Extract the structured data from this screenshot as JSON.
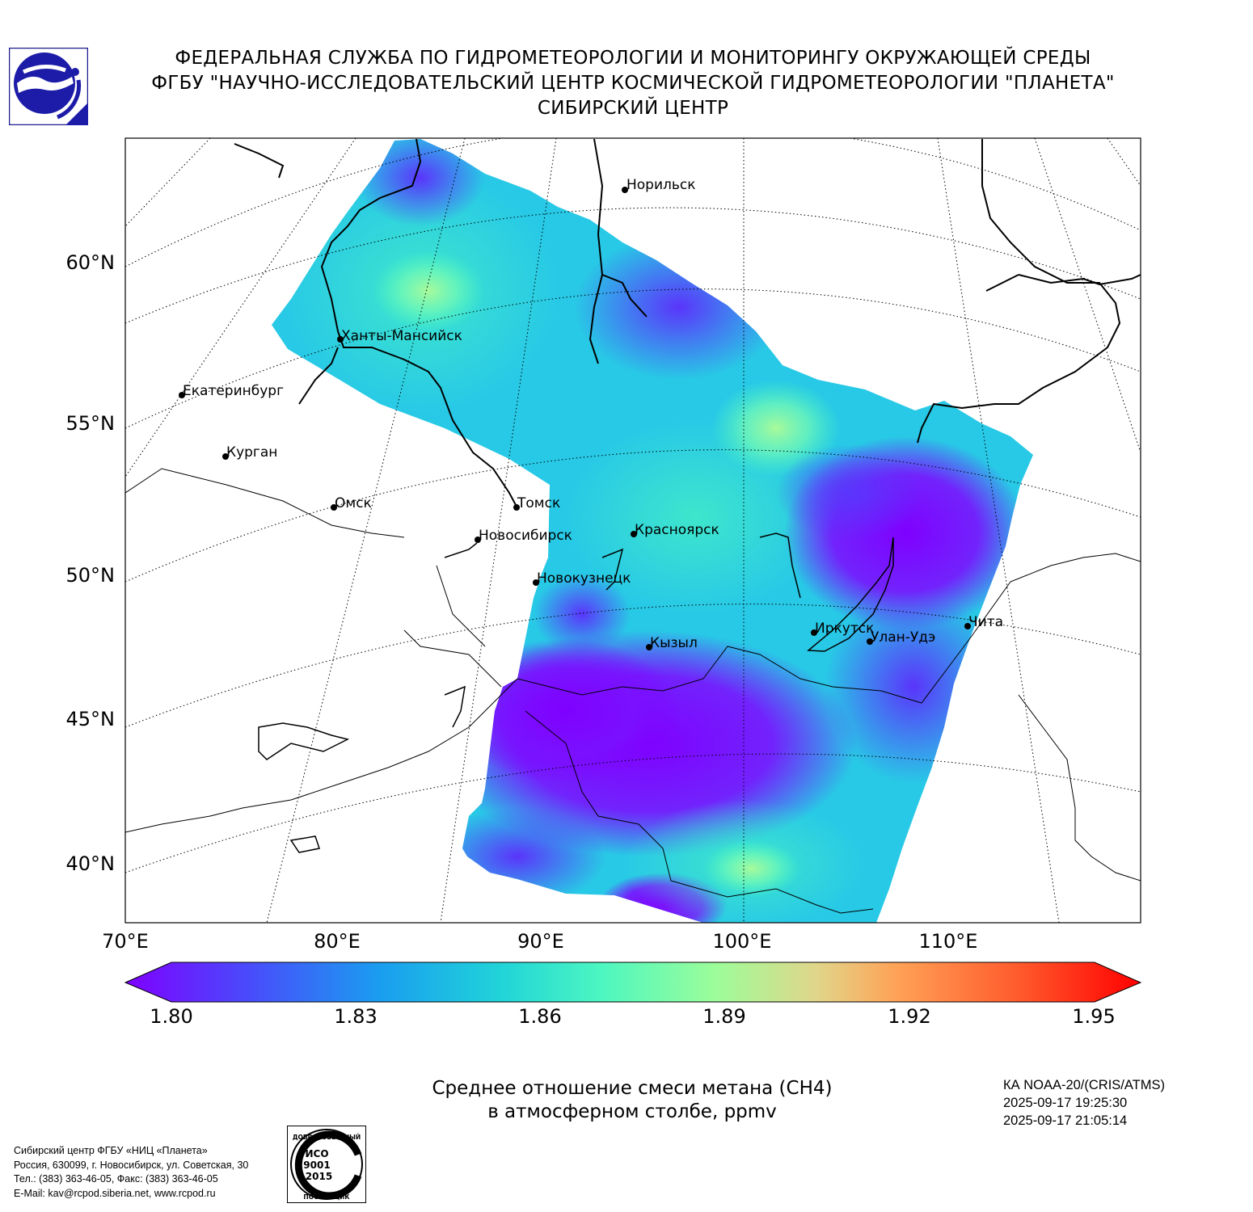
{
  "header": {
    "line1": "ФЕДЕРАЛЬНАЯ СЛУЖБА ПО ГИДРОМЕТЕОРОЛОГИИ И МОНИТОРИНГУ ОКРУЖАЮЩЕЙ СРЕДЫ",
    "line2": "ФГБУ \"НАУЧНО-ИССЛЕДОВАТЕЛЬСКИЙ ЦЕНТР КОСМИЧЕСКОЙ ГИДРОМЕТЕОРОЛОГИИ \"ПЛАНЕТА\"",
    "line3": "СИБИРСКИЙ ЦЕНТР"
  },
  "logo_icon": "planeta-logo-icon",
  "map": {
    "lat_labels": [
      "60°N",
      "55°N",
      "50°N",
      "45°N",
      "40°N"
    ],
    "lon_labels": [
      "70°E",
      "80°E",
      "90°E",
      "100°E",
      "110°E"
    ],
    "cities": [
      {
        "name": "Норильск"
      },
      {
        "name": "Ханты-Мансийск"
      },
      {
        "name": "Екатеринбург"
      },
      {
        "name": "Курган"
      },
      {
        "name": "Омск"
      },
      {
        "name": "Томск"
      },
      {
        "name": "Новосибирск"
      },
      {
        "name": "Красноярск"
      },
      {
        "name": "Новокузнецк"
      },
      {
        "name": "Кызыл"
      },
      {
        "name": "Иркутск"
      },
      {
        "name": "Улан-Удэ"
      },
      {
        "name": "Чита"
      }
    ]
  },
  "colorbar": {
    "min": 1.8,
    "max": 1.95,
    "ticks": [
      "1.80",
      "1.83",
      "1.86",
      "1.89",
      "1.92",
      "1.95"
    ],
    "colors": [
      "#7f00ff",
      "#4a4afb",
      "#1a9df0",
      "#20d4d8",
      "#4df7c0",
      "#9cfd9a",
      "#e0d68a",
      "#ffa256",
      "#ff5a2c",
      "#ff0000"
    ]
  },
  "title": {
    "line1": "Среднее отношение смеси метана (CH4)",
    "line2": "в атмосферном столбе, ppmv"
  },
  "satellite": {
    "line1": "КА NOAA-20/(CRIS/ATMS)",
    "line2": "2025-09-17 19:25:30",
    "line3": "2025-09-17 21:05:14"
  },
  "footer": {
    "line1": "Сибирский центр ФГБУ «НИЦ «Планета»",
    "line2": "Россия, 630099, г. Новосибирск, ул. Советская, 30",
    "line3": "Тел.: (383) 363-46-05, Факс: (383) 363-46-05",
    "line4": "E-Mail: kav@rcpod.siberia.net, www.rcpod.ru"
  },
  "iso_badge": {
    "top_text": "ДОБРОСОВЕСТНЫЙ",
    "line1": "ИСО",
    "line2": "9001",
    "line3": "-2015",
    "bottom_text": "ПОСТАВЩИК"
  }
}
